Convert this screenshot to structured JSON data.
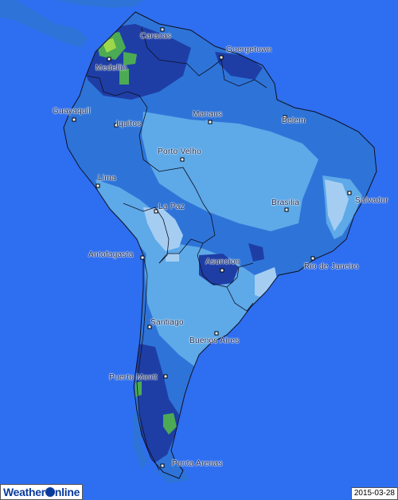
{
  "map": {
    "date": "2015-03-28",
    "logo": {
      "text_before": "Weather",
      "text_after": "nline"
    },
    "colors": {
      "ocean": "#2e6ef0",
      "level_1": "#a5cdf2",
      "level_2": "#5ea9e8",
      "level_3": "#2e74d8",
      "level_4": "#1e3ea6",
      "level_5": "#4caa55",
      "level_6": "#9ed84a",
      "borders": "#101020"
    },
    "cities": [
      {
        "name": "Caracas"
      },
      {
        "name": "Goergetown"
      },
      {
        "name": "Medellin"
      },
      {
        "name": "Guayaquil"
      },
      {
        "name": "Iquitos"
      },
      {
        "name": "Manaus"
      },
      {
        "name": "Belem"
      },
      {
        "name": "Porto Velho"
      },
      {
        "name": "Lima"
      },
      {
        "name": "La Paz"
      },
      {
        "name": "Brasilia"
      },
      {
        "name": "Salvador"
      },
      {
        "name": "Antofagasta"
      },
      {
        "name": "Asuncion"
      },
      {
        "name": "Rio de Janeiro"
      },
      {
        "name": "Santiago"
      },
      {
        "name": "Buenos Aires"
      },
      {
        "name": "Puerto Montt"
      },
      {
        "name": "Punta Arenas"
      }
    ]
  }
}
